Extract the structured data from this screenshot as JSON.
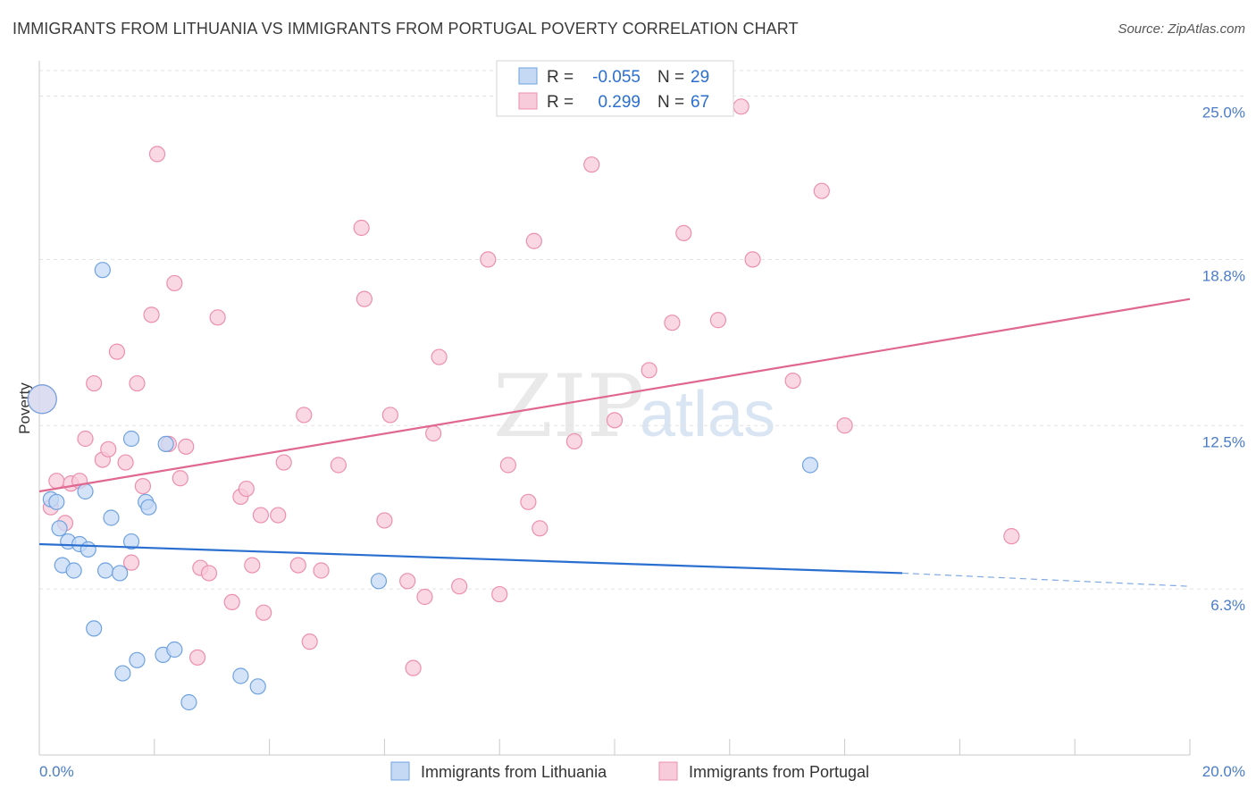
{
  "title": "IMMIGRANTS FROM LITHUANIA VS IMMIGRANTS FROM PORTUGAL POVERTY CORRELATION CHART",
  "source": "Source: ZipAtlas.com",
  "watermark": {
    "part1": "ZIP",
    "part2": "atlas"
  },
  "colors": {
    "blue": "#6fa2e0",
    "blue_fill": "#c5d9f5",
    "blue_line": "#2a6fd0",
    "pink": "#ec8fae",
    "pink_fill": "#f8cbda",
    "pink_line": "#e0678e",
    "tick": "#4a7cc7"
  },
  "legend": {
    "rows": [
      {
        "r_label": "R =",
        "r_value": "-0.055",
        "n_label": "N =",
        "n_value": "29"
      },
      {
        "r_label": "R =",
        "r_value": "0.299",
        "n_label": "N =",
        "n_value": "67"
      }
    ]
  },
  "chart_data": {
    "type": "scatter",
    "title": "IMMIGRANTS FROM LITHUANIA VS IMMIGRANTS FROM PORTUGAL POVERTY CORRELATION CHART",
    "xlabel": "",
    "ylabel": "Poverty",
    "xlim": [
      0,
      20
    ],
    "ylim": [
      0,
      26
    ],
    "x_tick_labels": [
      "0.0%",
      "20.0%"
    ],
    "y_ticks": [
      6.3,
      12.5,
      18.8,
      25.0
    ],
    "y_tick_labels": [
      "6.3%",
      "12.5%",
      "18.8%",
      "25.0%"
    ],
    "series": [
      {
        "name": "Immigrants from Lithuania",
        "color": "blue",
        "trend": {
          "x": [
            0,
            15.0
          ],
          "y": [
            8.0,
            6.9
          ],
          "dashed_to": [
            20,
            6.4
          ]
        },
        "points": [
          [
            0.2,
            9.7
          ],
          [
            0.3,
            9.6
          ],
          [
            0.35,
            8.6
          ],
          [
            0.4,
            7.2
          ],
          [
            0.5,
            8.1
          ],
          [
            0.6,
            7.0
          ],
          [
            0.7,
            8.0
          ],
          [
            0.8,
            10.0
          ],
          [
            0.85,
            7.8
          ],
          [
            0.95,
            4.8
          ],
          [
            1.1,
            18.4
          ],
          [
            1.15,
            7.0
          ],
          [
            1.25,
            9.0
          ],
          [
            1.4,
            6.9
          ],
          [
            1.45,
            3.1
          ],
          [
            1.6,
            8.1
          ],
          [
            1.6,
            12.0
          ],
          [
            1.7,
            3.6
          ],
          [
            1.85,
            9.6
          ],
          [
            1.9,
            9.4
          ],
          [
            2.15,
            3.8
          ],
          [
            2.2,
            11.8
          ],
          [
            2.35,
            4.0
          ],
          [
            2.6,
            2.0
          ],
          [
            3.5,
            3.0
          ],
          [
            3.8,
            2.6
          ],
          [
            5.9,
            6.6
          ],
          [
            13.4,
            11.0
          ],
          [
            0.05,
            13.5
          ]
        ]
      },
      {
        "name": "Immigrants from Portugal",
        "color": "pink",
        "trend": {
          "x": [
            0,
            20
          ],
          "y": [
            10.0,
            17.3
          ]
        },
        "points": [
          [
            0.05,
            13.5
          ],
          [
            0.2,
            9.4
          ],
          [
            0.3,
            10.4
          ],
          [
            0.45,
            8.8
          ],
          [
            0.55,
            10.3
          ],
          [
            0.7,
            10.4
          ],
          [
            0.8,
            12.0
          ],
          [
            0.95,
            14.1
          ],
          [
            1.1,
            11.2
          ],
          [
            1.2,
            11.6
          ],
          [
            1.35,
            15.3
          ],
          [
            1.5,
            11.1
          ],
          [
            1.6,
            7.3
          ],
          [
            1.7,
            14.1
          ],
          [
            1.8,
            10.2
          ],
          [
            1.95,
            16.7
          ],
          [
            2.05,
            22.8
          ],
          [
            2.25,
            11.8
          ],
          [
            2.35,
            17.9
          ],
          [
            2.45,
            10.5
          ],
          [
            2.55,
            11.7
          ],
          [
            2.75,
            3.7
          ],
          [
            2.8,
            7.1
          ],
          [
            2.95,
            6.9
          ],
          [
            3.1,
            16.6
          ],
          [
            3.35,
            5.8
          ],
          [
            3.5,
            9.8
          ],
          [
            3.6,
            10.1
          ],
          [
            3.7,
            7.2
          ],
          [
            3.85,
            9.1
          ],
          [
            3.9,
            5.4
          ],
          [
            4.15,
            9.1
          ],
          [
            4.25,
            11.1
          ],
          [
            4.5,
            7.2
          ],
          [
            4.6,
            12.9
          ],
          [
            4.7,
            4.3
          ],
          [
            4.9,
            7.0
          ],
          [
            5.2,
            11.0
          ],
          [
            5.6,
            20.0
          ],
          [
            5.65,
            17.3
          ],
          [
            6.0,
            8.9
          ],
          [
            6.1,
            12.9
          ],
          [
            6.4,
            6.6
          ],
          [
            6.5,
            3.3
          ],
          [
            6.7,
            6.0
          ],
          [
            6.85,
            12.2
          ],
          [
            6.95,
            15.1
          ],
          [
            7.3,
            6.4
          ],
          [
            7.8,
            18.8
          ],
          [
            8.0,
            6.1
          ],
          [
            8.15,
            11.0
          ],
          [
            8.5,
            9.6
          ],
          [
            8.6,
            19.5
          ],
          [
            8.7,
            8.6
          ],
          [
            9.3,
            11.9
          ],
          [
            9.6,
            22.4
          ],
          [
            10.0,
            12.7
          ],
          [
            10.6,
            14.6
          ],
          [
            11.0,
            16.4
          ],
          [
            11.2,
            19.8
          ],
          [
            11.8,
            16.5
          ],
          [
            12.2,
            24.6
          ],
          [
            12.4,
            18.8
          ],
          [
            13.1,
            14.2
          ],
          [
            13.6,
            21.4
          ],
          [
            14.0,
            12.5
          ],
          [
            16.9,
            8.3
          ]
        ]
      }
    ],
    "legend_position": "top-center"
  }
}
